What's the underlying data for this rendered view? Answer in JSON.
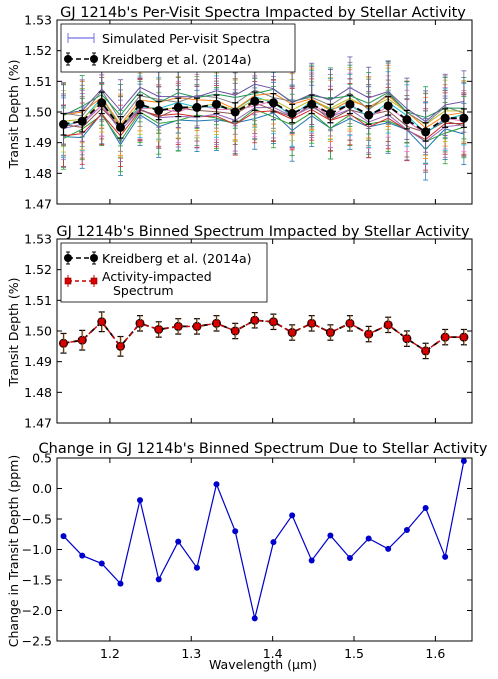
{
  "chart_data": [
    {
      "type": "scatter",
      "title": "GJ 1214b's Per-Visit Spectra Impacted by Stellar Activity",
      "ylabel": "Transit Depth (%)",
      "xlabel": "",
      "xlim": [
        1.135,
        1.645
      ],
      "ylim": [
        1.47,
        1.53
      ],
      "yticks": [
        "1.47",
        "1.48",
        "1.49",
        "1.50",
        "1.51",
        "1.52",
        "1.53"
      ],
      "grid": false,
      "legend": {
        "placement": "top-left",
        "entries": [
          "Simulated Per-visit Spectra",
          "Kreidberg et al. (2014a)"
        ]
      },
      "x": [
        1.143,
        1.166,
        1.19,
        1.213,
        1.237,
        1.26,
        1.284,
        1.307,
        1.331,
        1.354,
        1.378,
        1.401,
        1.424,
        1.448,
        1.471,
        1.495,
        1.518,
        1.542,
        1.565,
        1.588,
        1.612,
        1.635
      ],
      "series": [
        {
          "name": "Kreidberg et al. (2014a)",
          "style": "black-dashed-errorbar",
          "values": [
            1.496,
            1.497,
            1.503,
            1.495,
            1.5025,
            1.5005,
            1.5015,
            1.5015,
            1.5025,
            1.5,
            1.5035,
            1.503,
            1.4995,
            1.5025,
            1.4995,
            1.5025,
            1.499,
            1.502,
            1.4975,
            1.4935,
            1.498,
            1.498
          ],
          "errors": [
            0.0035,
            0.0035,
            0.0035,
            0.0035,
            0.003,
            0.003,
            0.003,
            0.003,
            0.003,
            0.003,
            0.003,
            0.003,
            0.003,
            0.003,
            0.003,
            0.003,
            0.003,
            0.003,
            0.003,
            0.003,
            0.003,
            0.003
          ]
        },
        {
          "name": "Simulated Per-visit Spectra",
          "style": "colored-errorbar-lines",
          "count": 12,
          "spread": 0.009,
          "error": 0.01
        }
      ]
    },
    {
      "type": "line",
      "title": "GJ 1214b's Binned Spectrum Impacted by Stellar Activity",
      "ylabel": "Transit Depth (%)",
      "xlabel": "",
      "xlim": [
        1.135,
        1.645
      ],
      "ylim": [
        1.47,
        1.53
      ],
      "yticks": [
        "1.47",
        "1.48",
        "1.49",
        "1.50",
        "1.51",
        "1.52",
        "1.53"
      ],
      "grid": false,
      "legend": {
        "placement": "top-left",
        "entries": [
          "Kreidberg et al. (2014a)",
          "Activity-impacted",
          "Spectrum"
        ]
      },
      "x": [
        1.143,
        1.166,
        1.19,
        1.213,
        1.237,
        1.26,
        1.284,
        1.307,
        1.331,
        1.354,
        1.378,
        1.401,
        1.424,
        1.448,
        1.471,
        1.495,
        1.518,
        1.542,
        1.565,
        1.588,
        1.612,
        1.635
      ],
      "series": [
        {
          "name": "Kreidberg et al. (2014a)",
          "style": "black-dashed-errorbar",
          "values": [
            1.496,
            1.497,
            1.503,
            1.495,
            1.5025,
            1.5005,
            1.5015,
            1.5015,
            1.5025,
            1.5,
            1.5035,
            1.503,
            1.4995,
            1.5025,
            1.4995,
            1.5025,
            1.499,
            1.502,
            1.4975,
            1.4935,
            1.498,
            1.498
          ],
          "errors": [
            0.0032,
            0.0032,
            0.0032,
            0.0032,
            0.0025,
            0.0025,
            0.0025,
            0.0025,
            0.0025,
            0.0025,
            0.0025,
            0.0025,
            0.0025,
            0.0025,
            0.0025,
            0.0025,
            0.0025,
            0.0025,
            0.0025,
            0.0025,
            0.0025,
            0.0025
          ]
        },
        {
          "name": "Activity-impacted Spectrum",
          "style": "red-square-errorbar",
          "values": [
            1.496,
            1.497,
            1.503,
            1.495,
            1.5025,
            1.5005,
            1.5015,
            1.5015,
            1.5025,
            1.5,
            1.5035,
            1.503,
            1.4995,
            1.5025,
            1.4995,
            1.5025,
            1.499,
            1.502,
            1.4975,
            1.4935,
            1.498,
            1.498
          ],
          "errors": [
            0.0032,
            0.0032,
            0.0032,
            0.0032,
            0.0025,
            0.0025,
            0.0025,
            0.0025,
            0.0025,
            0.0025,
            0.0025,
            0.0025,
            0.0025,
            0.0025,
            0.0025,
            0.0025,
            0.0025,
            0.0025,
            0.0025,
            0.0025,
            0.0025,
            0.0025
          ]
        }
      ]
    },
    {
      "type": "line",
      "title": "Change in GJ 1214b's Binned Spectrum Due to Stellar Activity",
      "ylabel": "Change in Transit Depth (ppm)",
      "xlabel": "Wavelength (μm)",
      "xlim": [
        1.135,
        1.645
      ],
      "ylim": [
        -2.5,
        0.5
      ],
      "yticks": [
        "−2.5",
        "−2.0",
        "−1.5",
        "−1.0",
        "−0.5",
        "0.0",
        "0.5"
      ],
      "xticks": [
        "1.2",
        "1.3",
        "1.4",
        "1.5",
        "1.6"
      ],
      "grid": false,
      "x": [
        1.143,
        1.166,
        1.19,
        1.213,
        1.237,
        1.26,
        1.284,
        1.307,
        1.331,
        1.354,
        1.378,
        1.401,
        1.424,
        1.448,
        1.471,
        1.495,
        1.518,
        1.542,
        1.565,
        1.588,
        1.612,
        1.635
      ],
      "series": [
        {
          "name": "",
          "color": "#0000cc",
          "values": [
            -0.78,
            -1.1,
            -1.23,
            -1.56,
            -0.19,
            -1.49,
            -0.87,
            -1.3,
            0.07,
            -0.7,
            -2.13,
            -0.88,
            -0.44,
            -1.18,
            -0.77,
            -1.14,
            -0.82,
            -0.99,
            -0.68,
            -0.32,
            -1.12,
            0.45
          ]
        }
      ]
    }
  ]
}
